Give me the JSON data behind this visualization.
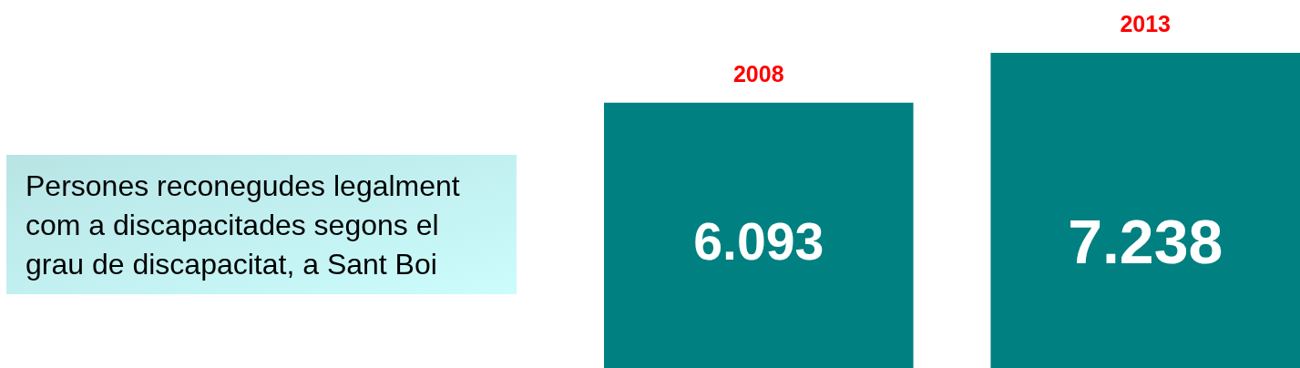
{
  "chart_data": {
    "type": "bar",
    "title": "Persones reconegudes legalment com a discapacitades segons el grau de discapacitat, a Sant Boi",
    "categories": [
      "2008",
      "2013"
    ],
    "values": [
      6093,
      7238
    ],
    "value_labels": [
      "6.093",
      "7.238"
    ],
    "color": "#008080"
  }
}
